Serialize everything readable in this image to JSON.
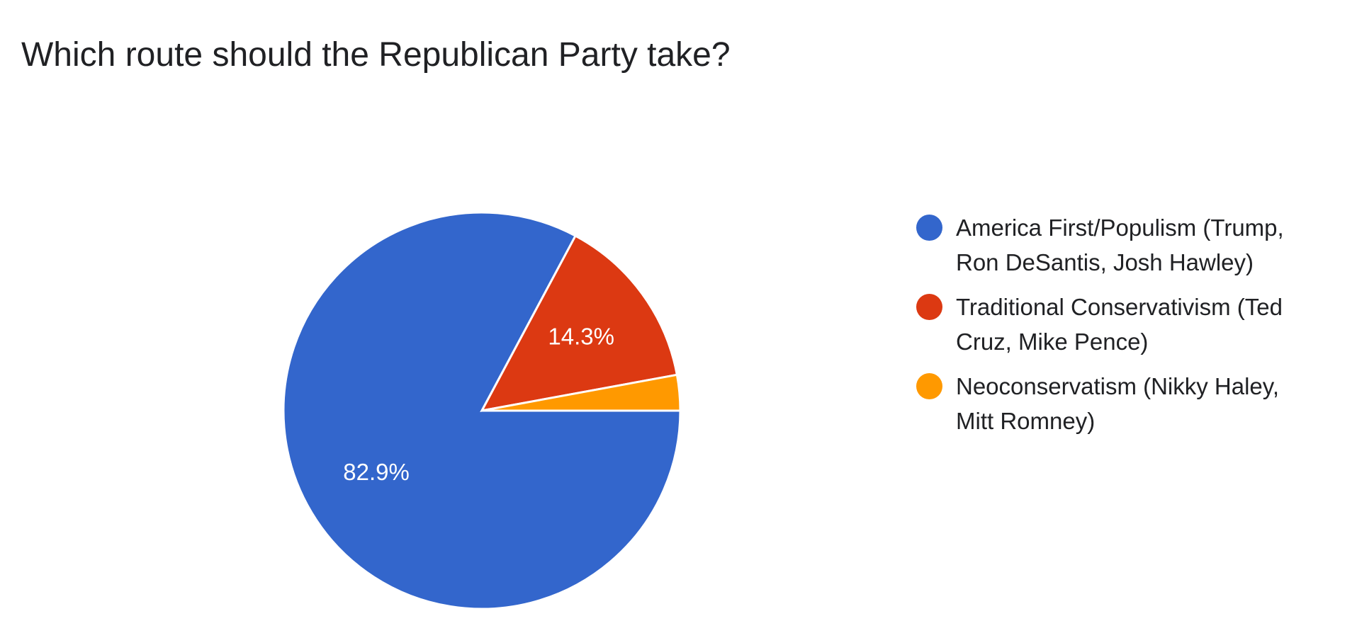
{
  "chart_data": {
    "type": "pie",
    "title": "Which route should the Republican Party take?",
    "legend_position": "right",
    "slices": [
      {
        "label": "America First/Populism (Trump, Ron DeSantis, Josh Hawley)",
        "value": 82.9,
        "display": "82.9%",
        "color": "#3366cc"
      },
      {
        "label": "Traditional Conservativism (Ted Cruz, Mike Pence)",
        "value": 14.3,
        "display": "14.3%",
        "color": "#dc3912"
      },
      {
        "label": "Neoconservatism (Nikky Haley, Mitt Romney)",
        "value": 2.9,
        "display": "",
        "color": "#ff9900"
      }
    ],
    "legend": [
      {
        "line1": "America First/Populism (Trump,",
        "line2": "Ron DeSantis, Josh Hawley)",
        "color": "#3366cc"
      },
      {
        "line1": "Traditional Conservativism (Ted",
        "line2": "Cruz, Mike Pence)",
        "color": "#dc3912"
      },
      {
        "line1": "Neoconservatism (Nikky Haley,",
        "line2": "Mitt Romney)",
        "color": "#ff9900"
      }
    ]
  }
}
